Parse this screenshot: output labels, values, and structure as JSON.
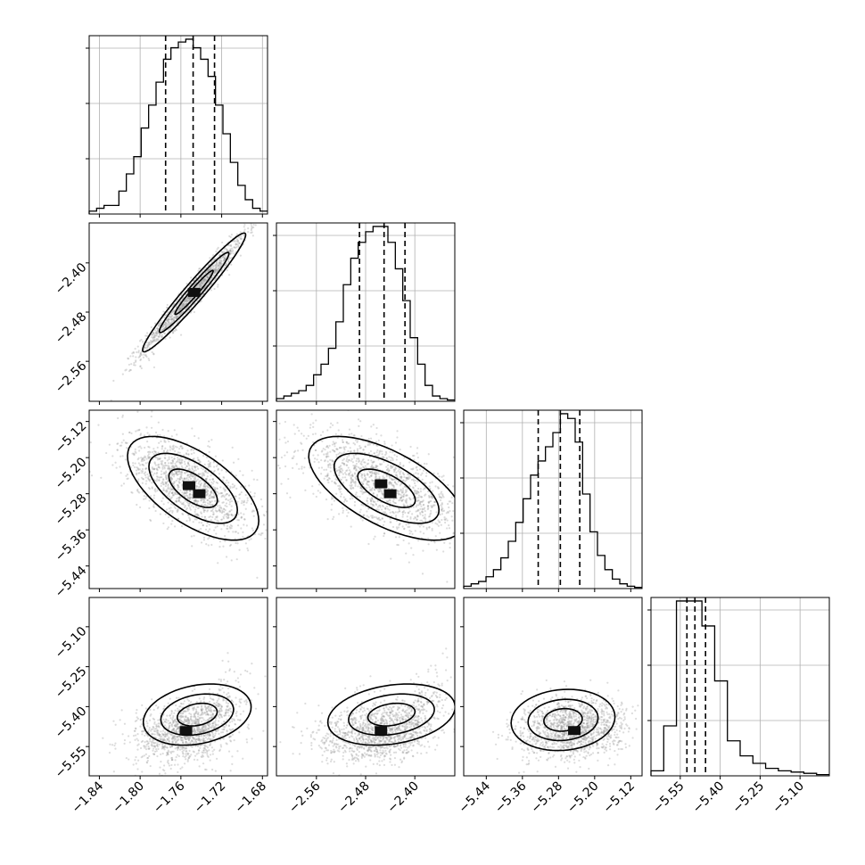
{
  "chart_data": {
    "type": "corner",
    "grid": true,
    "parameters": [
      {
        "range": [
          -1.85,
          -1.675
        ],
        "ticks": [
          -1.84,
          -1.8,
          -1.76,
          -1.72,
          -1.68
        ],
        "tick_labels": [
          "−1.84",
          "−1.80",
          "−1.76",
          "−1.72",
          "−1.68"
        ],
        "hist_values": [
          1,
          2,
          3,
          3,
          8,
          14,
          20,
          30,
          38,
          46,
          54,
          58,
          60,
          61,
          58,
          54,
          48,
          38,
          28,
          18,
          10,
          5,
          2,
          1
        ],
        "quantiles": [
          -1.775,
          -1.748,
          -1.727
        ]
      },
      {
        "range": [
          -2.625,
          -2.335
        ],
        "ticks": [
          -2.56,
          -2.48,
          -2.4
        ],
        "tick_labels": [
          "−2.56",
          "−2.48",
          "−2.40"
        ],
        "hist_values": [
          1,
          2,
          3,
          4,
          6,
          10,
          14,
          20,
          30,
          44,
          54,
          60,
          64,
          66,
          66,
          60,
          50,
          38,
          24,
          14,
          6,
          2,
          1,
          0.5
        ],
        "quantiles": [
          -2.49,
          -2.45,
          -2.416
        ]
      },
      {
        "range": [
          -5.49,
          -5.095
        ],
        "ticks": [
          -5.44,
          -5.36,
          -5.28,
          -5.2,
          -5.12
        ],
        "tick_labels": [
          "−5.44",
          "−5.36",
          "−5.28",
          "−5.20",
          "−5.12"
        ],
        "hist_values": [
          1,
          2,
          3,
          5,
          8,
          13,
          20,
          28,
          38,
          48,
          54,
          60,
          66,
          74,
          72,
          62,
          40,
          24,
          14,
          8,
          4,
          2,
          1,
          0.5
        ],
        "quantiles": [
          -5.325,
          -5.276,
          -5.233
        ]
      },
      {
        "range": [
          -5.66,
          -4.99
        ],
        "ticks": [
          -5.55,
          -5.4,
          -5.25,
          -5.1
        ],
        "tick_labels": [
          "−5.55",
          "−5.40",
          "−5.25",
          "−5.10"
        ],
        "hist_values": [
          2,
          20,
          70,
          70,
          60,
          38,
          14,
          8,
          5,
          3,
          2,
          1.5,
          1,
          0.5
        ],
        "quantiles": [
          -5.525,
          -5.495,
          -5.455
        ]
      }
    ],
    "pairs": [
      {
        "row": 1,
        "col": 0,
        "center": [
          -1.747,
          -2.448
        ],
        "sd": [
          0.022,
          0.042
        ],
        "rho": 0.97,
        "contour_offset": [
          0,
          0
        ],
        "hot_bins": [
          [
            -1.747,
            -2.448
          ]
        ]
      },
      {
        "row": 2,
        "col": 0,
        "center": [
          -1.752,
          -5.262
        ],
        "sd": [
          0.028,
          0.05
        ],
        "rho": -0.62,
        "contour_offset": [
          0.004,
          -0.006
        ],
        "hot_bins": [
          [
            -1.752,
            -5.262
          ],
          [
            -1.742,
            -5.28
          ]
        ]
      },
      {
        "row": 2,
        "col": 1,
        "center": [
          -2.452,
          -5.262
        ],
        "sd": [
          0.055,
          0.05
        ],
        "rho": -0.62,
        "contour_offset": [
          0.006,
          -0.006
        ],
        "hot_bins": [
          [
            -2.455,
            -5.258
          ],
          [
            -2.44,
            -5.28
          ]
        ]
      },
      {
        "row": 3,
        "col": 0,
        "center": [
          -1.752,
          -5.49
        ],
        "sd": [
          0.023,
          0.05
        ],
        "rho": 0.25,
        "contour_offset": [
          0.008,
          0.06
        ],
        "hot_bins": [
          [
            -1.755,
            -5.49
          ]
        ]
      },
      {
        "row": 3,
        "col": 1,
        "center": [
          -2.45,
          -5.49
        ],
        "sd": [
          0.045,
          0.05
        ],
        "rho": 0.25,
        "contour_offset": [
          0.012,
          0.06
        ],
        "hot_bins": [
          [
            -2.455,
            -5.49
          ]
        ]
      },
      {
        "row": 3,
        "col": 2,
        "center": [
          -5.25,
          -5.48
        ],
        "sd": [
          0.05,
          0.05
        ],
        "rho": 0.1,
        "contour_offset": [
          -0.02,
          0.03
        ],
        "hot_bins": [
          [
            -5.245,
            -5.49
          ]
        ]
      }
    ],
    "colors": {
      "line": "#000000",
      "grid": "#b0b0b0",
      "points": "#9a9a9a"
    }
  }
}
